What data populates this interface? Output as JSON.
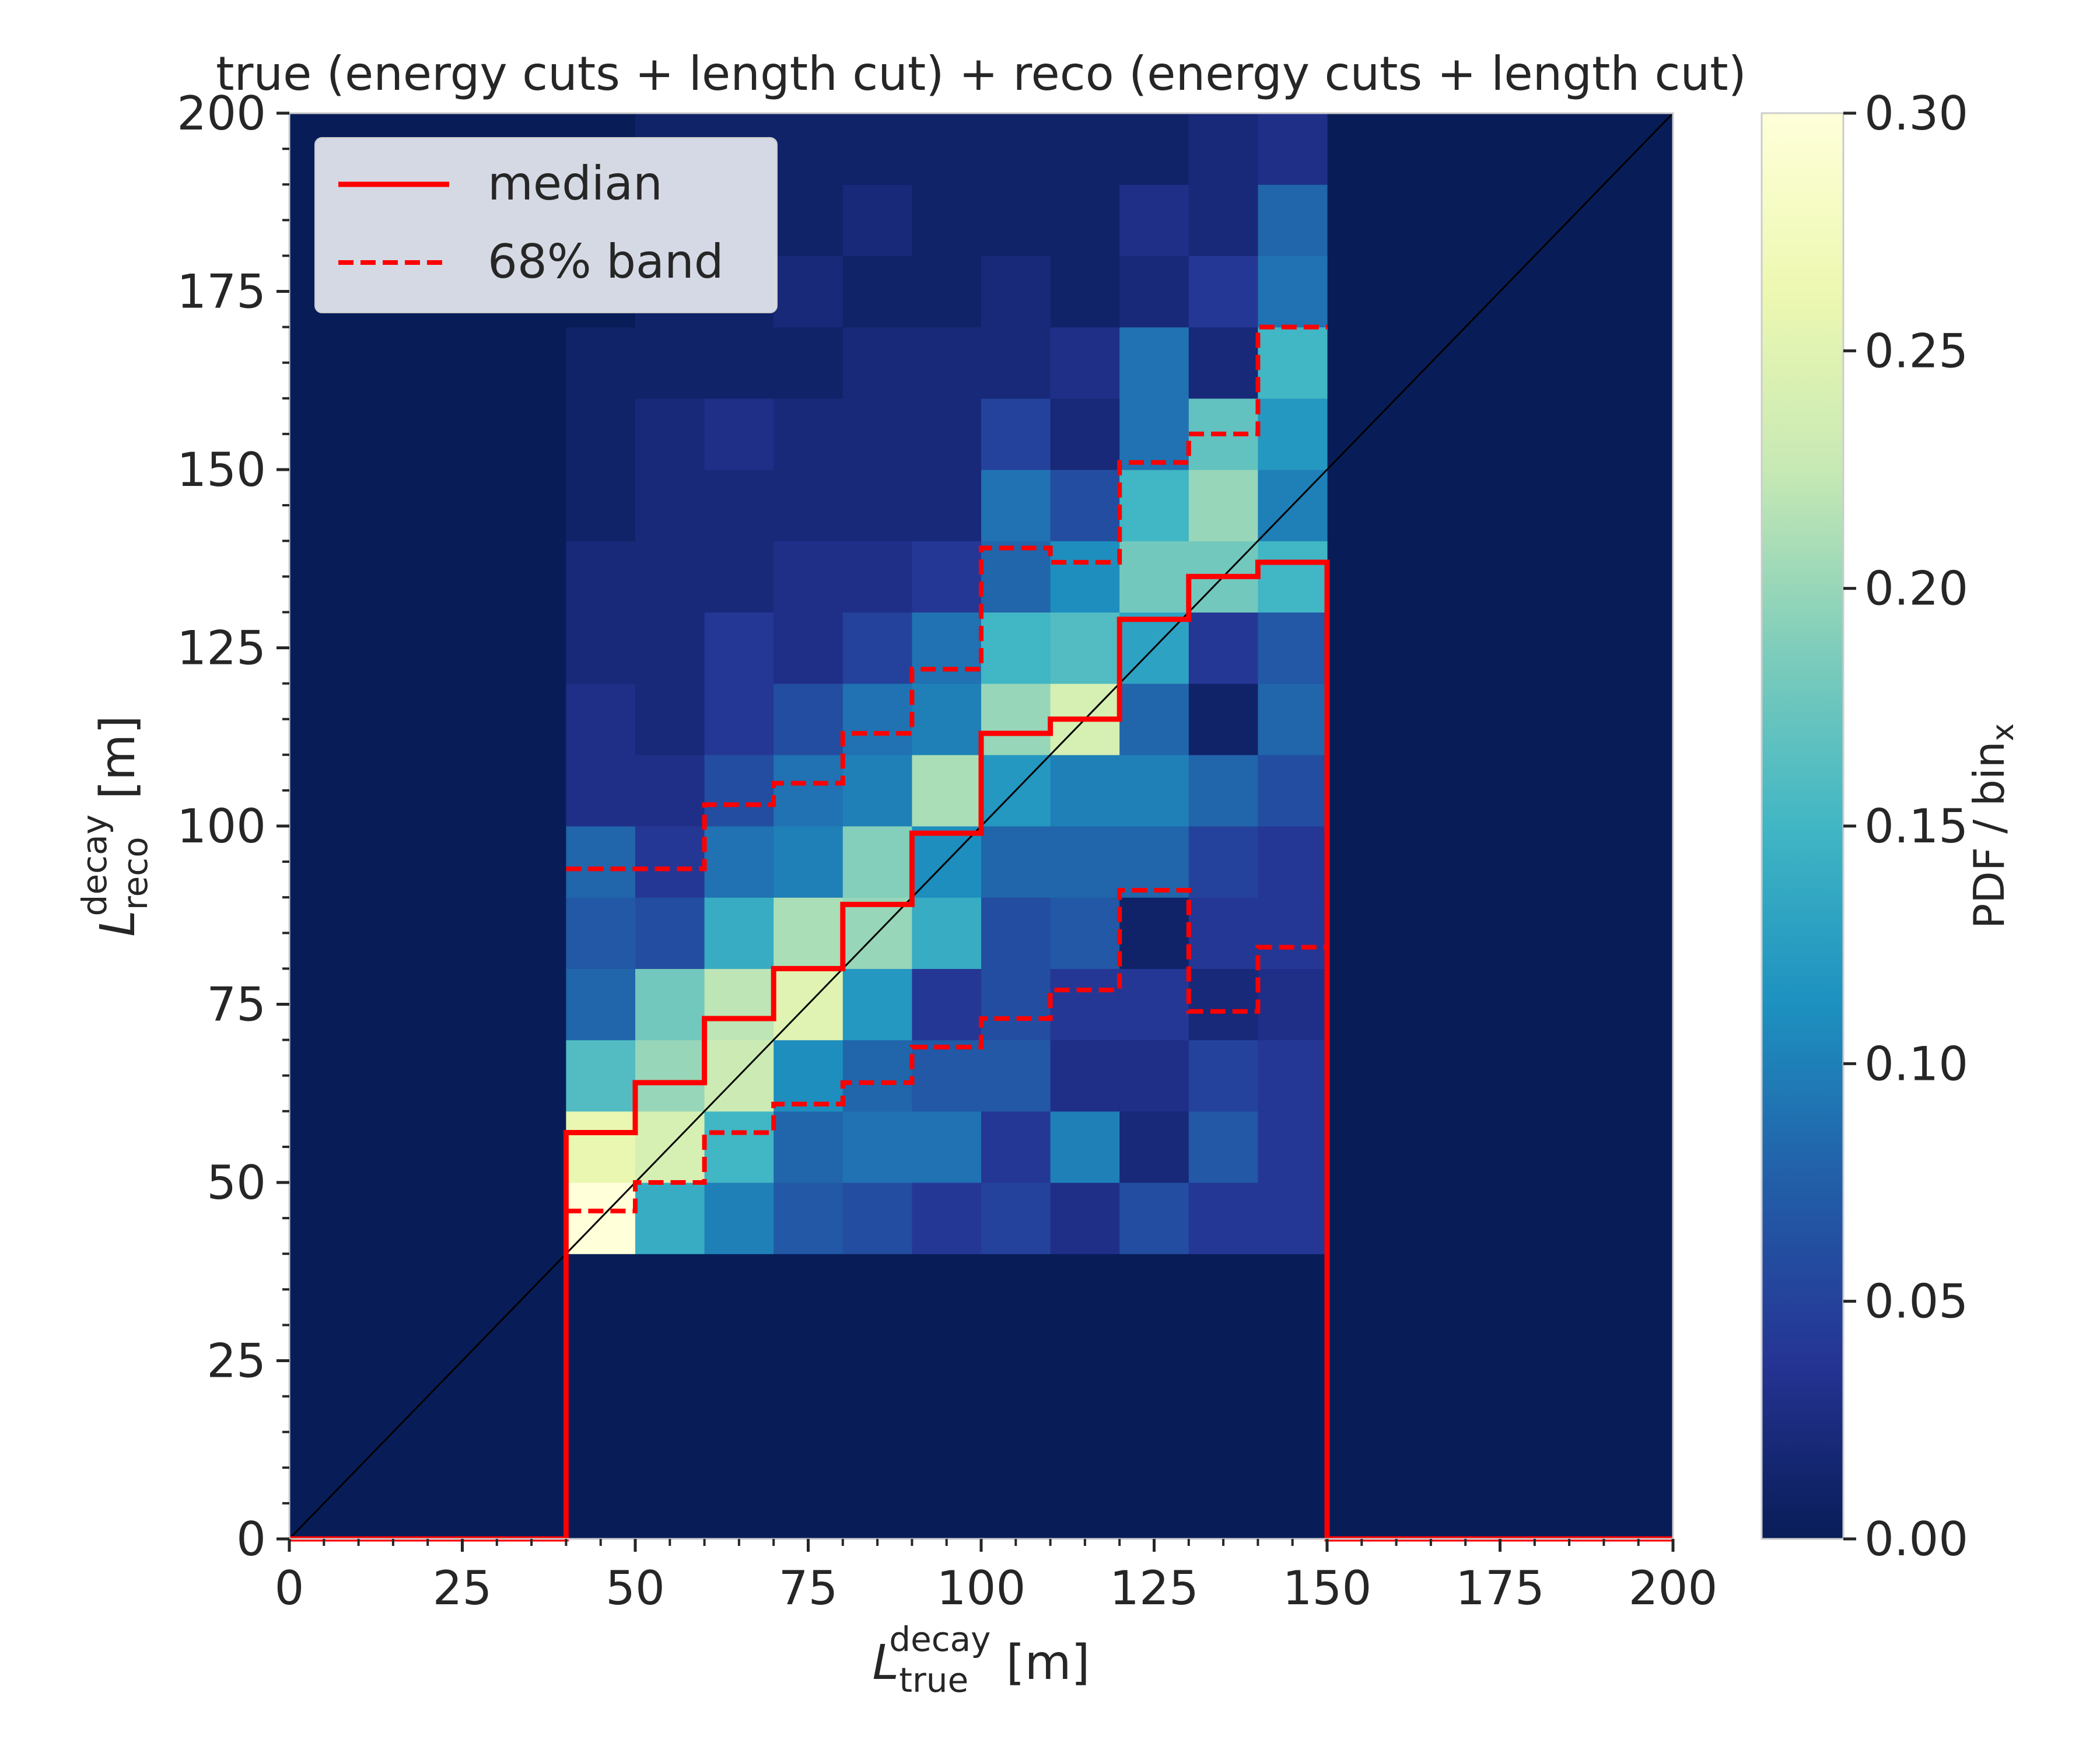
{
  "chart_data": {
    "type": "heatmap",
    "title": "true (energy cuts + length cut) + reco (energy cuts + length cut)",
    "xlabel": {
      "base": "L",
      "sup": "decay",
      "sub": "true",
      "unit": " [m]"
    },
    "ylabel": {
      "base": "L",
      "sup": "decay",
      "sub": "reco",
      "unit": " [m]"
    },
    "xlim": [
      0,
      200
    ],
    "ylim": [
      0,
      200
    ],
    "x_ticks": [
      "0",
      "25",
      "50",
      "75",
      "100",
      "125",
      "150",
      "175",
      "200"
    ],
    "y_ticks": [
      "0",
      "25",
      "50",
      "75",
      "100",
      "125",
      "150",
      "175",
      "200"
    ],
    "colorbar": {
      "label": {
        "base": "PDF / bin",
        "sub": "x"
      },
      "range": [
        0,
        0.3
      ],
      "ticks": [
        "0.00",
        "0.05",
        "0.10",
        "0.15",
        "0.20",
        "0.25",
        "0.30"
      ],
      "colormap": "YlGnBu",
      "stops": [
        "#ffffd9",
        "#edf8b1",
        "#c7e9b4",
        "#7fcdbb",
        "#41b6c4",
        "#1d91c0",
        "#225ea8",
        "#253494",
        "#081d58"
      ]
    },
    "bin_width": 10,
    "x_bin_edges_start": 40,
    "y_bin_edges_start": 40,
    "z": [
      [
        0.3,
        0.14,
        0.1,
        0.07,
        0.06,
        0.04,
        0.05,
        0.03,
        0.06,
        0.04,
        0.04
      ],
      [
        0.26,
        0.24,
        0.15,
        0.08,
        0.09,
        0.09,
        0.04,
        0.1,
        0.02,
        0.07,
        0.04
      ],
      [
        0.16,
        0.2,
        0.23,
        0.11,
        0.08,
        0.07,
        0.07,
        0.03,
        0.03,
        0.05,
        0.04
      ],
      [
        0.08,
        0.18,
        0.22,
        0.25,
        0.12,
        0.04,
        0.06,
        0.04,
        0.04,
        0.02,
        0.03
      ],
      [
        0.07,
        0.06,
        0.14,
        0.21,
        0.2,
        0.14,
        0.06,
        0.07,
        0.01,
        0.04,
        0.04
      ],
      [
        0.08,
        0.04,
        0.09,
        0.1,
        0.19,
        0.11,
        0.08,
        0.08,
        0.08,
        0.05,
        0.04
      ],
      [
        0.03,
        0.03,
        0.06,
        0.09,
        0.1,
        0.21,
        0.12,
        0.1,
        0.1,
        0.08,
        0.06
      ],
      [
        0.03,
        0.02,
        0.04,
        0.06,
        0.09,
        0.1,
        0.2,
        0.24,
        0.08,
        0.01,
        0.08
      ],
      [
        0.02,
        0.02,
        0.04,
        0.03,
        0.05,
        0.09,
        0.15,
        0.16,
        0.13,
        0.04,
        0.07
      ],
      [
        0.02,
        0.02,
        0.02,
        0.03,
        0.03,
        0.04,
        0.08,
        0.11,
        0.18,
        0.18,
        0.15
      ],
      [
        0.01,
        0.02,
        0.02,
        0.02,
        0.02,
        0.02,
        0.09,
        0.06,
        0.15,
        0.2,
        0.1
      ],
      [
        0.01,
        0.02,
        0.03,
        0.02,
        0.02,
        0.02,
        0.05,
        0.02,
        0.09,
        0.17,
        0.12
      ],
      [
        0.01,
        0.01,
        0.01,
        0.01,
        0.02,
        0.02,
        0.02,
        0.03,
        0.09,
        0.02,
        0.15
      ],
      [
        0.0,
        0.01,
        0.01,
        0.02,
        0.01,
        0.01,
        0.02,
        0.01,
        0.02,
        0.04,
        0.09
      ],
      [
        0.0,
        0.01,
        0.01,
        0.01,
        0.02,
        0.01,
        0.01,
        0.01,
        0.03,
        0.02,
        0.08
      ],
      [
        0.0,
        0.01,
        0.01,
        0.01,
        0.01,
        0.01,
        0.01,
        0.01,
        0.01,
        0.02,
        0.03
      ],
      [
        0.0,
        0.01,
        0.01,
        0.01,
        0.01,
        0.01,
        0.01,
        0.01,
        0.0,
        0.02,
        0.02
      ]
    ],
    "diagonal": {
      "from": [
        0,
        0
      ],
      "to": [
        200,
        200
      ]
    },
    "series": [
      {
        "name": "median",
        "style": "solid",
        "steps": [
          [
            40,
            50,
            57
          ],
          [
            50,
            60,
            64
          ],
          [
            60,
            70,
            73
          ],
          [
            70,
            80,
            80
          ],
          [
            80,
            90,
            89
          ],
          [
            90,
            100,
            99
          ],
          [
            100,
            110,
            113
          ],
          [
            110,
            120,
            115
          ],
          [
            120,
            130,
            129
          ],
          [
            130,
            140,
            135
          ],
          [
            140,
            150,
            137
          ]
        ]
      },
      {
        "name": "68% band",
        "style": "dashed",
        "upper_steps": [
          [
            40,
            60,
            94
          ],
          [
            60,
            70,
            103
          ],
          [
            70,
            80,
            106
          ],
          [
            80,
            90,
            113
          ],
          [
            90,
            100,
            122
          ],
          [
            100,
            110,
            139
          ],
          [
            110,
            120,
            137
          ],
          [
            120,
            130,
            151
          ],
          [
            130,
            140,
            155
          ],
          [
            140,
            150,
            170
          ]
        ],
        "lower_steps": [
          [
            40,
            50,
            46
          ],
          [
            50,
            60,
            50
          ],
          [
            60,
            70,
            57
          ],
          [
            70,
            80,
            61
          ],
          [
            80,
            90,
            64
          ],
          [
            90,
            100,
            69
          ],
          [
            100,
            110,
            73
          ],
          [
            110,
            120,
            77
          ],
          [
            120,
            130,
            91
          ],
          [
            130,
            140,
            74
          ],
          [
            140,
            150,
            83
          ]
        ]
      }
    ],
    "legend": {
      "position": "top-left",
      "entries": [
        "median",
        "68% band"
      ]
    },
    "colors": {
      "line": "#ff0000",
      "diagonal": "#000000",
      "background": "#081d58"
    }
  }
}
